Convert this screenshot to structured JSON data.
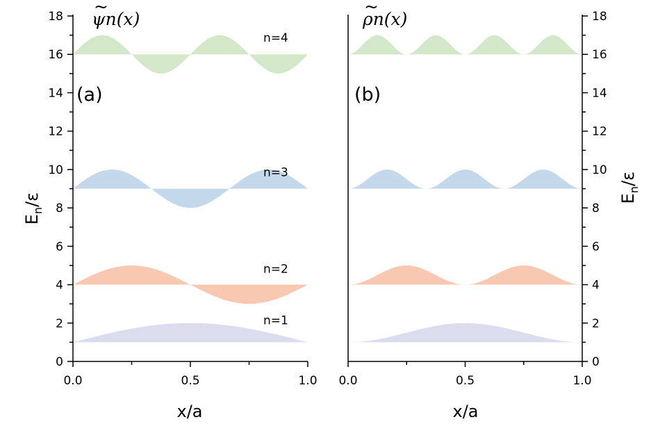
{
  "colors": {
    "n1": "#dcdcef",
    "n2": "#f8c8b0",
    "n3": "#c3d8ea",
    "n4": "#d3e8c8",
    "axis": "#000000"
  },
  "chart_data": [
    {
      "panel": "(a)",
      "type": "area",
      "title_glyph": "ψ",
      "title_suffix": "n(x)",
      "xlabel": "x/a",
      "ylabel_main": "E",
      "ylabel_sub": "n",
      "ylabel_rest": "/ε",
      "xlim": [
        0.0,
        1.0
      ],
      "ylim": [
        0,
        18
      ],
      "xticks": [
        "0.0",
        "0.5",
        "1.0"
      ],
      "yticks": [
        "0",
        "2",
        "4",
        "6",
        "8",
        "10",
        "12",
        "14",
        "16",
        "18"
      ],
      "quantity": "wavefunction",
      "series": [
        {
          "name": "n=1",
          "n": 1,
          "baseline": 1,
          "amplitude": 1
        },
        {
          "name": "n=2",
          "n": 2,
          "baseline": 4,
          "amplitude": 1
        },
        {
          "name": "n=3",
          "n": 3,
          "baseline": 9,
          "amplitude": 1
        },
        {
          "name": "n=4",
          "n": 4,
          "baseline": 16,
          "amplitude": 1
        }
      ]
    },
    {
      "panel": "(b)",
      "type": "area",
      "title_glyph": "ρ",
      "title_suffix": "n(x)",
      "xlabel": "x/a",
      "ylabel_main": "E",
      "ylabel_sub": "n",
      "ylabel_rest": "/ε",
      "xlim": [
        0.0,
        1.0
      ],
      "ylim": [
        0,
        18
      ],
      "xticks": [
        "0.0",
        "0.5",
        "1.0"
      ],
      "yticks": [
        "0",
        "2",
        "4",
        "6",
        "8",
        "10",
        "12",
        "14",
        "16",
        "18"
      ],
      "quantity": "density",
      "series": [
        {
          "n": 1,
          "baseline": 1,
          "amplitude": 1
        },
        {
          "n": 2,
          "baseline": 4,
          "amplitude": 1
        },
        {
          "n": 3,
          "baseline": 9,
          "amplitude": 1
        },
        {
          "n": 4,
          "baseline": 16,
          "amplitude": 1
        }
      ]
    }
  ]
}
